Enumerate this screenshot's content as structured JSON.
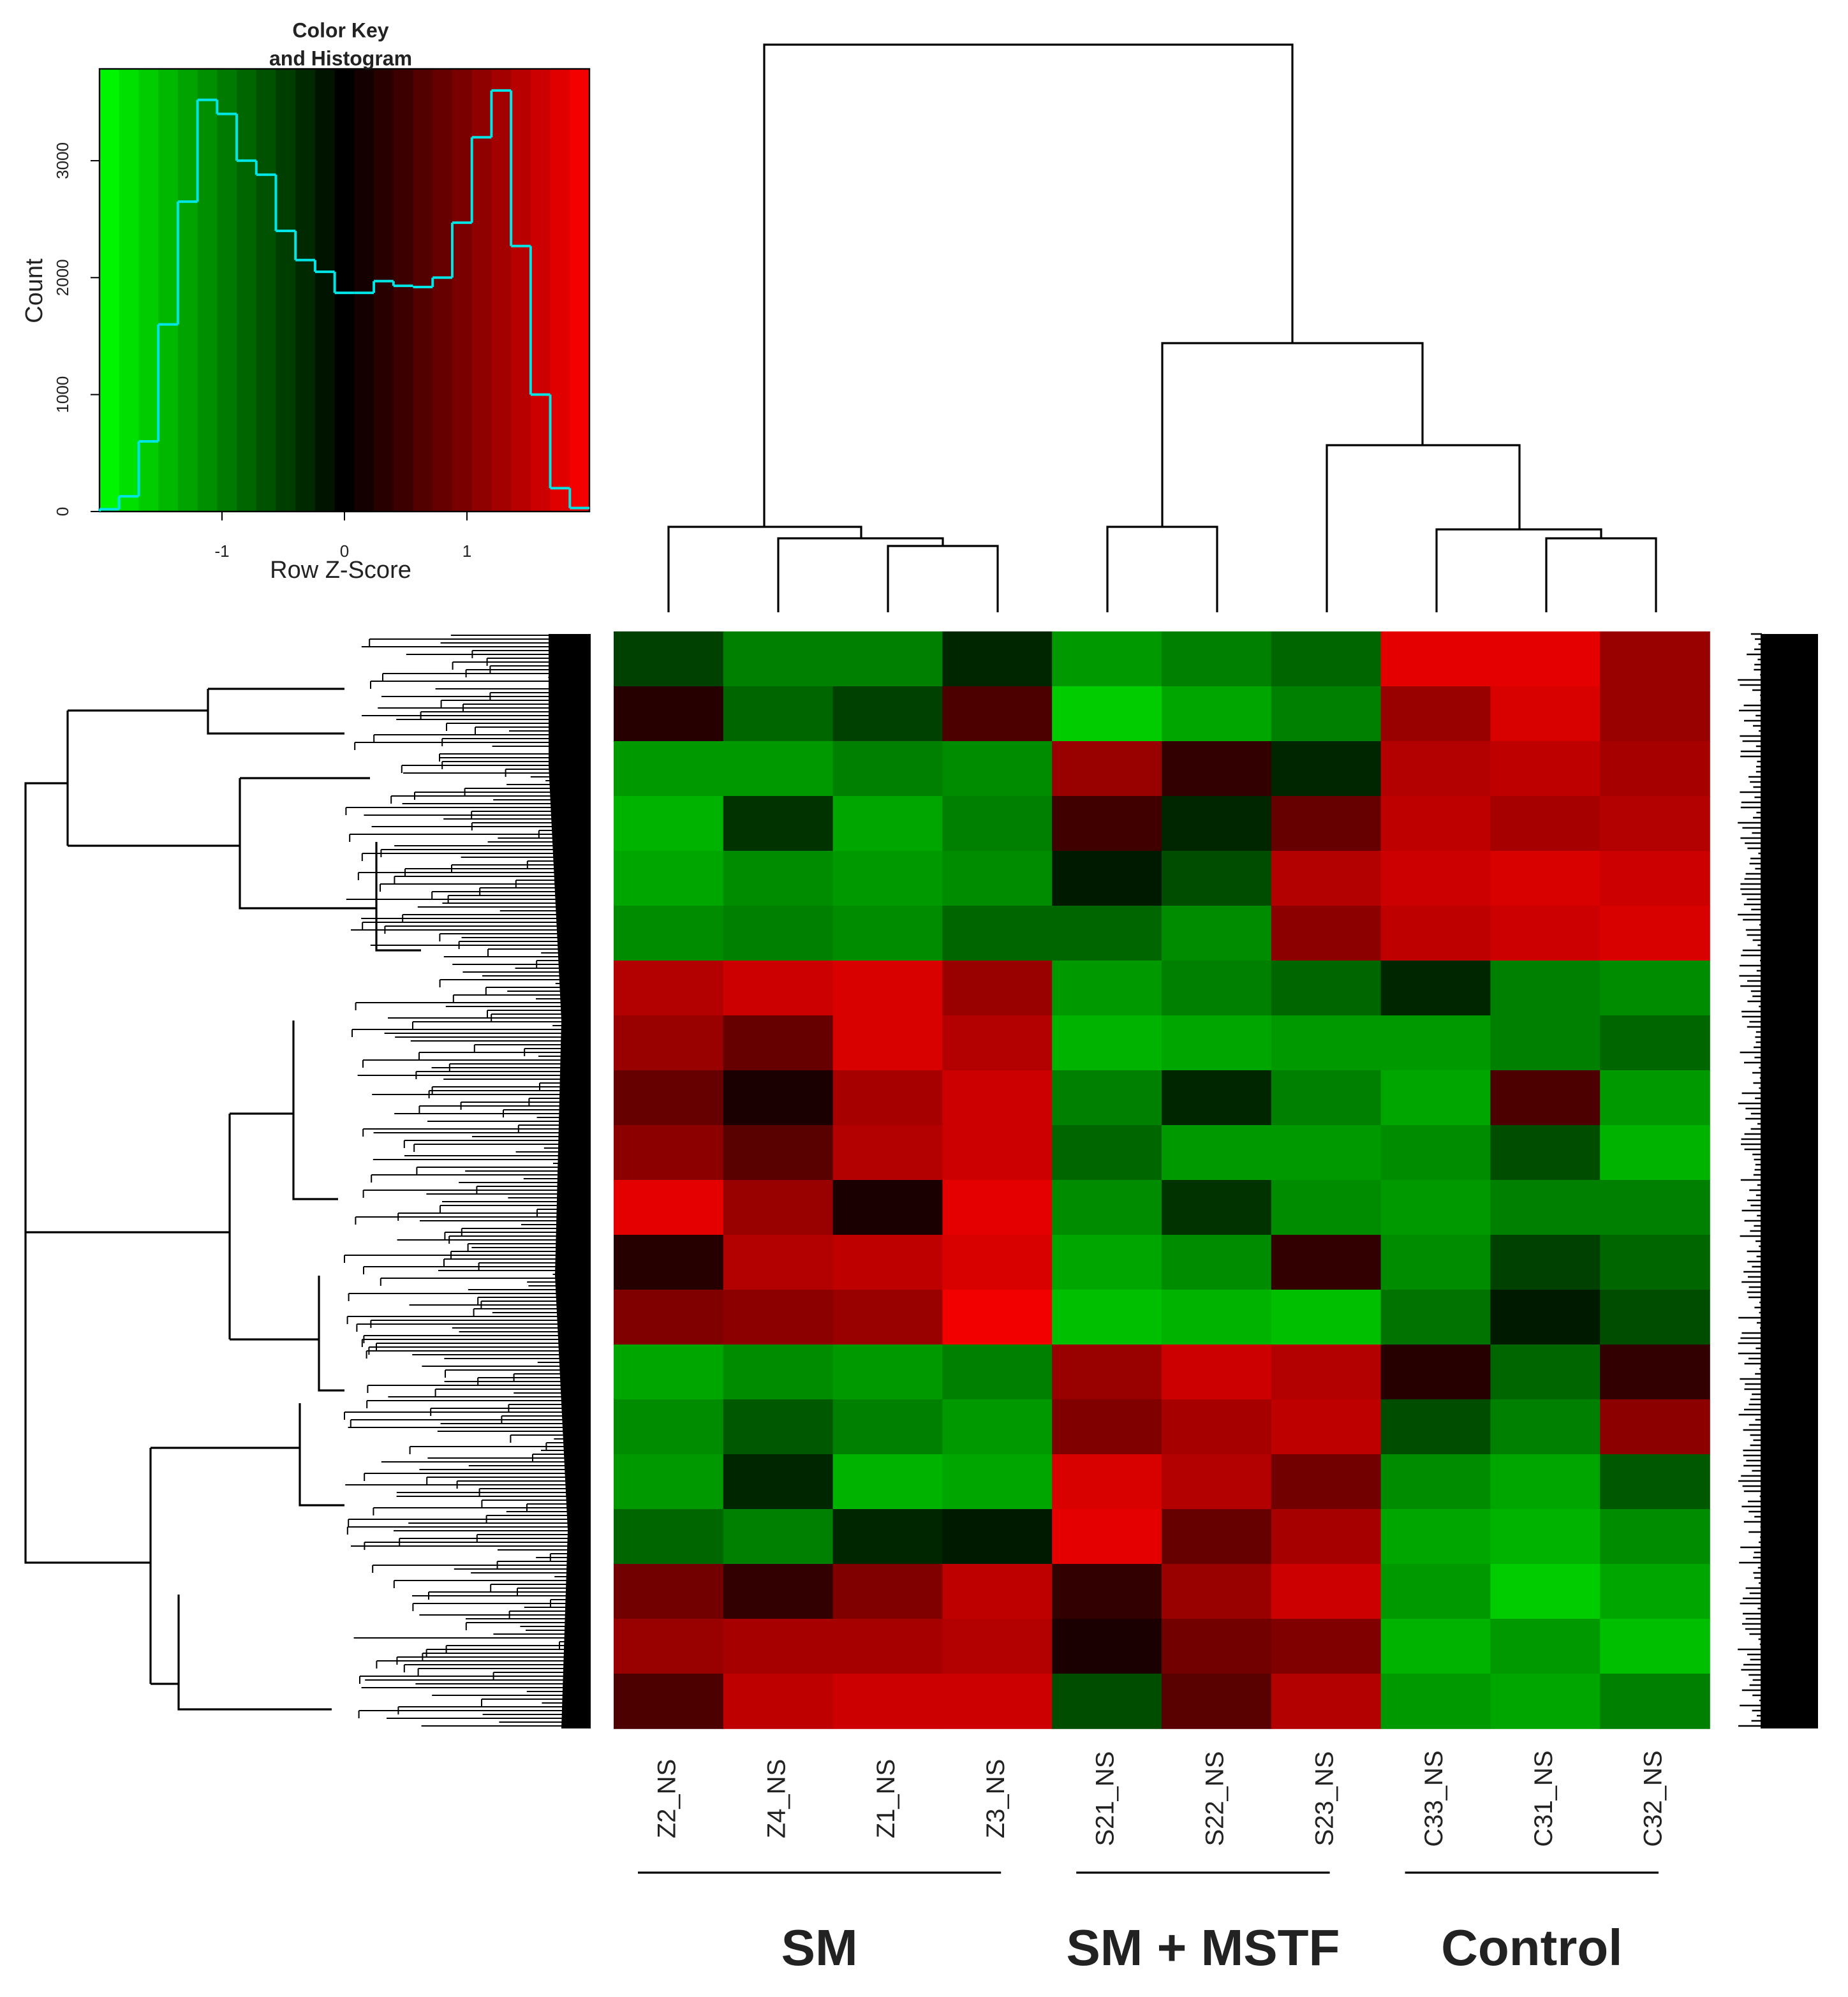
{
  "chart_data": [
    {
      "type": "histogram",
      "title": [
        "Color Key",
        "and Histogram"
      ],
      "xlabel": "Row Z-Score",
      "ylabel": "Count",
      "bins": [
        -2,
        -1.84,
        -1.68,
        -1.52,
        -1.36,
        -1.2,
        -1.04,
        -0.88,
        -0.72,
        -0.56,
        -0.4,
        -0.24,
        -0.08,
        0.08,
        0.24,
        0.4,
        0.56,
        0.72,
        0.88,
        1.04,
        1.2,
        1.36,
        1.52,
        1.68,
        1.84,
        2
      ],
      "counts": [
        20,
        130,
        600,
        1600,
        2650,
        3520,
        3400,
        3000,
        2880,
        2400,
        2150,
        2050,
        1870,
        1870,
        1970,
        1930,
        1920,
        2000,
        2470,
        3200,
        3600,
        2270,
        1000,
        200,
        30
      ],
      "xlim": [
        -2,
        2
      ],
      "xticks": [
        -1,
        0,
        1
      ],
      "ylim": [
        0,
        3785
      ],
      "yticks": [
        0,
        1000,
        2000,
        3000
      ],
      "color": "#00e5e5",
      "colorscale": [
        "#00ff00",
        "#000000",
        "#ff0000"
      ]
    },
    {
      "type": "heatmap",
      "columns": [
        "Z2_NS",
        "Z4_NS",
        "Z1_NS",
        "Z3_NS",
        "S21_NS",
        "S22_NS",
        "S23_NS",
        "C33_NS",
        "C31_NS",
        "C32_NS"
      ],
      "groups": [
        {
          "name": "SM",
          "columns": [
            "Z2_NS",
            "Z4_NS",
            "Z1_NS",
            "Z3_NS"
          ]
        },
        {
          "name": "SM + MSTF",
          "columns": [
            "S21_NS",
            "S22_NS",
            "S23_NS"
          ]
        },
        {
          "name": "Control",
          "columns": [
            "C33_NS",
            "C31_NS",
            "C32_NS"
          ]
        }
      ],
      "zlim": [
        -2,
        2
      ],
      "colorscale": [
        "#00ff00",
        "#000000",
        "#ff0000"
      ],
      "values": [
        [
          -0.5,
          -1,
          -1,
          -0.3,
          -1.2,
          -1,
          -0.8,
          1.8,
          1.8,
          1.2
        ],
        [
          0.3,
          -0.8,
          -0.5,
          0.6,
          -1.6,
          -1.3,
          -1,
          1.2,
          1.7,
          1.2
        ],
        [
          -1.2,
          -1.2,
          -1,
          -1.1,
          1.2,
          0.4,
          -0.3,
          1.4,
          1.5,
          1.3
        ],
        [
          -1.4,
          -0.4,
          -1.3,
          -1,
          0.5,
          -0.3,
          0.8,
          1.5,
          1.3,
          1.4
        ],
        [
          -1.3,
          -1.1,
          -1.2,
          -1.1,
          -0.2,
          -0.6,
          1.4,
          1.6,
          1.7,
          1.6
        ],
        [
          -1.1,
          -1,
          -1.1,
          -0.8,
          -0.8,
          -1.1,
          1.1,
          1.5,
          1.6,
          1.7
        ],
        [
          1.4,
          1.6,
          1.7,
          1.2,
          -1.2,
          -1,
          -0.8,
          -0.3,
          -1,
          -1.1
        ],
        [
          1.2,
          0.8,
          1.7,
          1.4,
          -1.4,
          -1.3,
          -1.2,
          -1.2,
          -1,
          -0.8
        ],
        [
          0.8,
          0.2,
          1.3,
          1.6,
          -1,
          -0.3,
          -1,
          -1.3,
          0.6,
          -1.2
        ],
        [
          1.1,
          0.7,
          1.4,
          1.6,
          -0.8,
          -1.2,
          -1.2,
          -1.1,
          -0.6,
          -1.4
        ],
        [
          1.8,
          1.2,
          0.2,
          1.8,
          -1.1,
          -0.4,
          -1.1,
          -1.2,
          -1,
          -1
        ],
        [
          0.3,
          1.4,
          1.5,
          1.7,
          -1.3,
          -1.1,
          0.4,
          -1.1,
          -0.5,
          -0.8
        ],
        [
          1,
          1.1,
          1.2,
          1.9,
          -1.5,
          -1.4,
          -1.5,
          -0.9,
          -0.2,
          -0.6
        ],
        [
          -1.3,
          -1.1,
          -1.2,
          -1,
          1.2,
          1.6,
          1.4,
          0.3,
          -0.8,
          0.4
        ],
        [
          -1.1,
          -0.7,
          -1,
          -1.2,
          1,
          1.3,
          1.5,
          -0.6,
          -1,
          1.1
        ],
        [
          -1.2,
          -0.3,
          -1.4,
          -1.3,
          1.7,
          1.4,
          0.9,
          -1.1,
          -1.3,
          -0.7
        ],
        [
          -0.8,
          -1,
          -0.3,
          -0.2,
          1.8,
          0.8,
          1.3,
          -1.3,
          -1.4,
          -1.1
        ],
        [
          0.9,
          0.4,
          1,
          1.5,
          0.4,
          1.2,
          1.6,
          -1.2,
          -1.6,
          -1.3
        ],
        [
          1.2,
          1.3,
          1.3,
          1.4,
          0.2,
          0.9,
          1,
          -1.4,
          -1.2,
          -1.5
        ],
        [
          0.6,
          1.5,
          1.6,
          1.6,
          -0.6,
          0.7,
          1.4,
          -1.2,
          -1.3,
          -1
        ]
      ]
    }
  ]
}
